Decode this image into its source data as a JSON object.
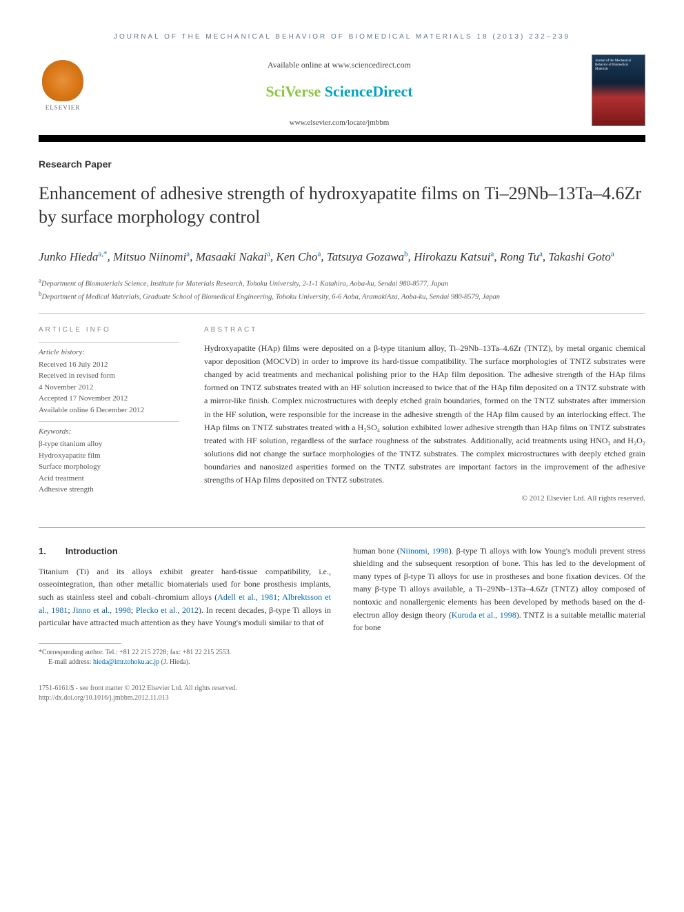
{
  "header": {
    "journal_bar": "JOURNAL OF THE MECHANICAL BEHAVIOR OF BIOMEDICAL MATERIALS 18 (2013) 232–239",
    "available_text": "Available online at www.sciencedirect.com",
    "sciverse_prefix": "SciVerse ",
    "sciverse_suffix": "ScienceDirect",
    "journal_url": "www.elsevier.com/locate/jmbbm",
    "publisher_name": "ELSEVIER",
    "cover_title": "Journal of the Mechanical Behavior of Biomedical Materials"
  },
  "paper": {
    "type": "Research Paper",
    "title": "Enhancement of adhesive strength of hydroxyapatite films on Ti–29Nb–13Ta–4.6Zr by surface morphology control",
    "authors_html_parts": {
      "a1": "Junko Hieda",
      "a1_sup": "a,*",
      "a2": "Mitsuo Niinomi",
      "a2_sup": "a",
      "a3": "Masaaki Nakai",
      "a3_sup": "a",
      "a4": "Ken Cho",
      "a4_sup": "a",
      "a5": "Tatsuya Gozawa",
      "a5_sup": "b",
      "a6": "Hirokazu Katsui",
      "a6_sup": "a",
      "a7": "Rong Tu",
      "a7_sup": "a",
      "a8": "Takashi Goto",
      "a8_sup": "a"
    },
    "affiliations": {
      "a": "Department of Biomaterials Science, Institute for Materials Research, Tohoku University, 2-1-1 Katahira, Aoba-ku, Sendai 980-8577, Japan",
      "b": "Department of Medical Materials, Graduate School of Biomedical Engineering, Tohoku University, 6-6 Aoba, AramakiAza, Aoba-ku, Sendai 980-8579, Japan"
    }
  },
  "info": {
    "article_info_label": "ARTICLE INFO",
    "abstract_label": "ABSTRACT",
    "history_title": "Article history:",
    "history": {
      "received": "Received 16 July 2012",
      "revised1": "Received in revised form",
      "revised2": "4 November 2012",
      "accepted": "Accepted 17 November 2012",
      "online": "Available online 6 December 2012"
    },
    "keywords_title": "Keywords:",
    "keywords": [
      "β-type titanium alloy",
      "Hydroxyapatite film",
      "Surface morphology",
      "Acid treatment",
      "Adhesive strength"
    ]
  },
  "abstract": {
    "text": "Hydroxyapatite (HAp) films were deposited on a β-type titanium alloy, Ti–29Nb–13Ta–4.6Zr (TNTZ), by metal organic chemical vapor deposition (MOCVD) in order to improve its hard-tissue compatibility. The surface morphologies of TNTZ substrates were changed by acid treatments and mechanical polishing prior to the HAp film deposition. The adhesive strength of the HAp films formed on TNTZ substrates treated with an HF solution increased to twice that of the HAp film deposited on a TNTZ substrate with a mirror-like finish. Complex microstructures with deeply etched grain boundaries, formed on the TNTZ substrates after immersion in the HF solution, were responsible for the increase in the adhesive strength of the HAp film caused by an interlocking effect. The HAp films on TNTZ substrates treated with a H₂SO₄ solution exhibited lower adhesive strength than HAp films on TNTZ substrates treated with HF solution, regardless of the surface roughness of the substrates. Additionally, acid treatments using HNO₃ and H₂O₂ solutions did not change the surface morphologies of the TNTZ substrates. The complex microstructures with deeply etched grain boundaries and nanosized asperities formed on the TNTZ substrates are important factors in the improvement of the adhesive strengths of HAp films deposited on TNTZ substrates.",
    "copyright": "© 2012 Elsevier Ltd. All rights reserved."
  },
  "body": {
    "section1_num": "1.",
    "section1_title": "Introduction",
    "col1_p1_a": "Titanium (Ti) and its alloys exhibit greater hard-tissue compatibility, i.e., osseointegration, than other metallic biomaterials used for bone prosthesis implants, such as stainless steel and cobalt–chromium alloys (",
    "ref1": "Adell et al., 1981",
    "col1_p1_b": "; ",
    "ref2": "Albrektsson et al., 1981",
    "col1_p1_c": "; ",
    "ref3": "Jinno et al., 1998",
    "col1_p1_d": "; ",
    "ref4": "Plecko et al., 2012",
    "col1_p1_e": "). In recent decades, β-type Ti alloys in particular have attracted much attention as they have Young's moduli similar to that of",
    "col2_p1_a": "human bone (",
    "ref5": "Niinomi, 1998",
    "col2_p1_b": "). β-type Ti alloys with low Young's moduli prevent stress shielding and the subsequent resorption of bone. This has led to the development of many types of β-type Ti alloys for use in prostheses and bone fixation devices. Of the many β-type Ti alloys available, a Ti–29Nb–13Ta–4.6Zr (TNTZ) alloy composed of nontoxic and nonallergenic elements has been developed by methods based on the d-electron alloy design theory (",
    "ref6": "Kuroda et al., 1998",
    "col2_p1_c": "). TNTZ is a suitable metallic material for bone"
  },
  "footnote": {
    "corresponding": "*Corresponding author. Tel.: +81 22 215 2728; fax: +81 22 215 2553.",
    "email_label": "E-mail address: ",
    "email": "hieda@imr.tohoku.ac.jp",
    "email_suffix": " (J. Hieda)."
  },
  "bottom": {
    "line1": "1751-6161/$ - see front matter © 2012 Elsevier Ltd. All rights reserved.",
    "line2": "http://dx.doi.org/10.1016/j.jmbbm.2012.11.013"
  },
  "colors": {
    "link": "#0066aa",
    "header_blue": "#5a7a8a",
    "sciverse_green": "#8cc63f",
    "sciverse_blue": "#00a4c4"
  }
}
